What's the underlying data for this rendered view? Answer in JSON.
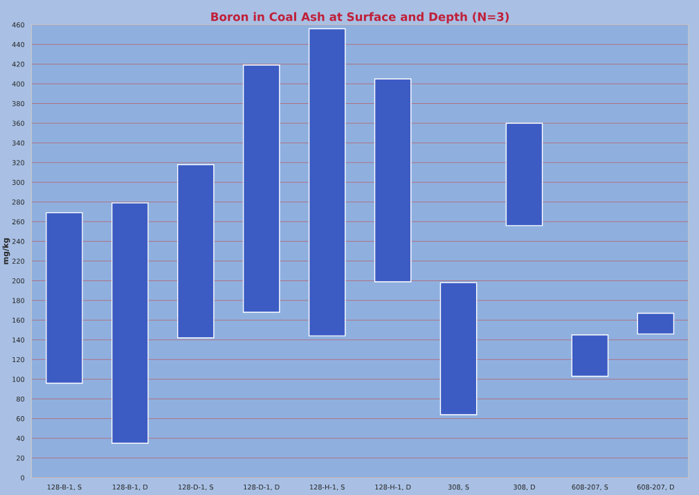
{
  "chart_data": {
    "type": "bar",
    "title": "Boron in Coal Ash at Surface and Depth (N=3)",
    "ylabel": "mg/kg",
    "categories": [
      "128-B-1, S",
      "128-B-1, D",
      "128-D-1, S",
      "128-D-1, D",
      "128-H-1, S",
      "128-H-1, D",
      "308, S",
      "308, D",
      "608-207, S",
      "608-207, D"
    ],
    "base": [
      96,
      35,
      142,
      168,
      144,
      199,
      64,
      256,
      103,
      146
    ],
    "values": [
      173,
      244,
      176,
      251,
      312,
      206,
      134,
      104,
      42,
      21
    ],
    "color": "#3c5cc4",
    "ylim": [
      0,
      460
    ],
    "yticks": [
      0,
      20,
      40,
      60,
      80,
      100,
      120,
      140,
      160,
      180,
      200,
      220,
      240,
      260,
      280,
      300,
      320,
      340,
      360,
      380,
      400,
      420,
      440,
      460
    ],
    "grid": "y"
  }
}
